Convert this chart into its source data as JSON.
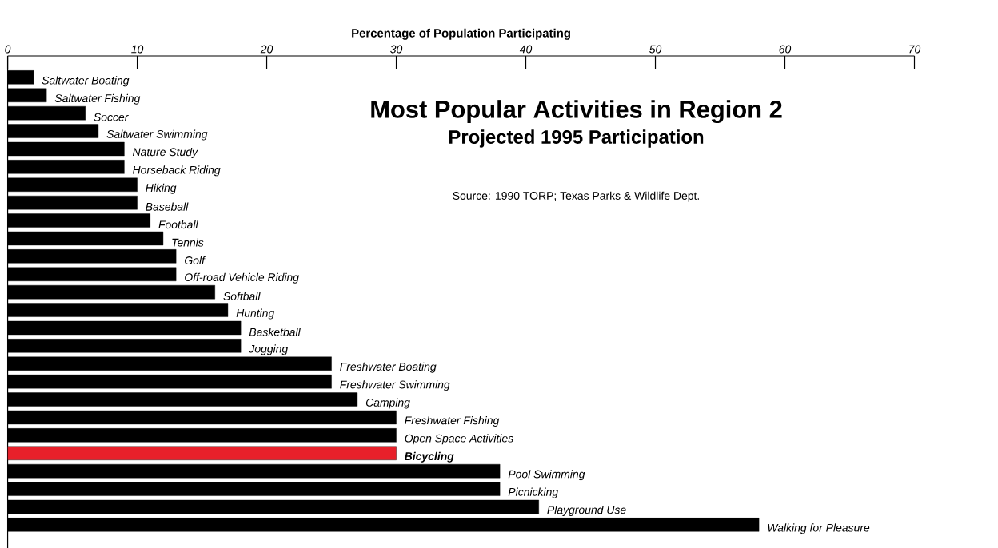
{
  "chart_data": {
    "type": "bar",
    "orientation": "horizontal",
    "title": "Most Popular Activities in Region 2",
    "subtitle": "Projected 1995 Participation",
    "xlabel": "Percentage of Population Participating",
    "annotations": [
      "Source: 1990 TORP; Texas Parks & Wildlife Dept."
    ],
    "categories": [
      "Saltwater Boating",
      "Saltwater Fishing",
      "Soccer",
      "Saltwater Swimming",
      "Nature Study",
      "Horseback Riding",
      "Hiking",
      "Baseball",
      "Football",
      "Tennis",
      "Golf",
      "Off-road Vehicle Riding",
      "Softball",
      "Hunting",
      "Basketball",
      "Jogging",
      "Freshwater Boating",
      "Freshwater Swimming",
      "Camping",
      "Freshwater Fishing",
      "Open Space Activities",
      "Bicycling",
      "Pool Swimming",
      "Picnicking",
      "Playground Use",
      "Walking for Pleasure"
    ],
    "values": [
      2,
      3,
      6,
      7,
      9,
      9,
      10,
      10,
      11,
      12,
      13,
      13,
      16,
      17,
      18,
      18,
      25,
      25,
      27,
      30,
      30,
      30,
      38,
      38,
      41,
      58
    ],
    "colors": [
      "#000000",
      "#000000",
      "#000000",
      "#000000",
      "#000000",
      "#000000",
      "#000000",
      "#000000",
      "#000000",
      "#000000",
      "#000000",
      "#000000",
      "#000000",
      "#000000",
      "#000000",
      "#000000",
      "#000000",
      "#000000",
      "#000000",
      "#000000",
      "#000000",
      "#e8202a",
      "#000000",
      "#000000",
      "#000000",
      "#000000"
    ],
    "xlim": [
      0,
      70
    ],
    "xticks": [
      0,
      10,
      20,
      30,
      40,
      50,
      60,
      70
    ],
    "grid": false
  }
}
